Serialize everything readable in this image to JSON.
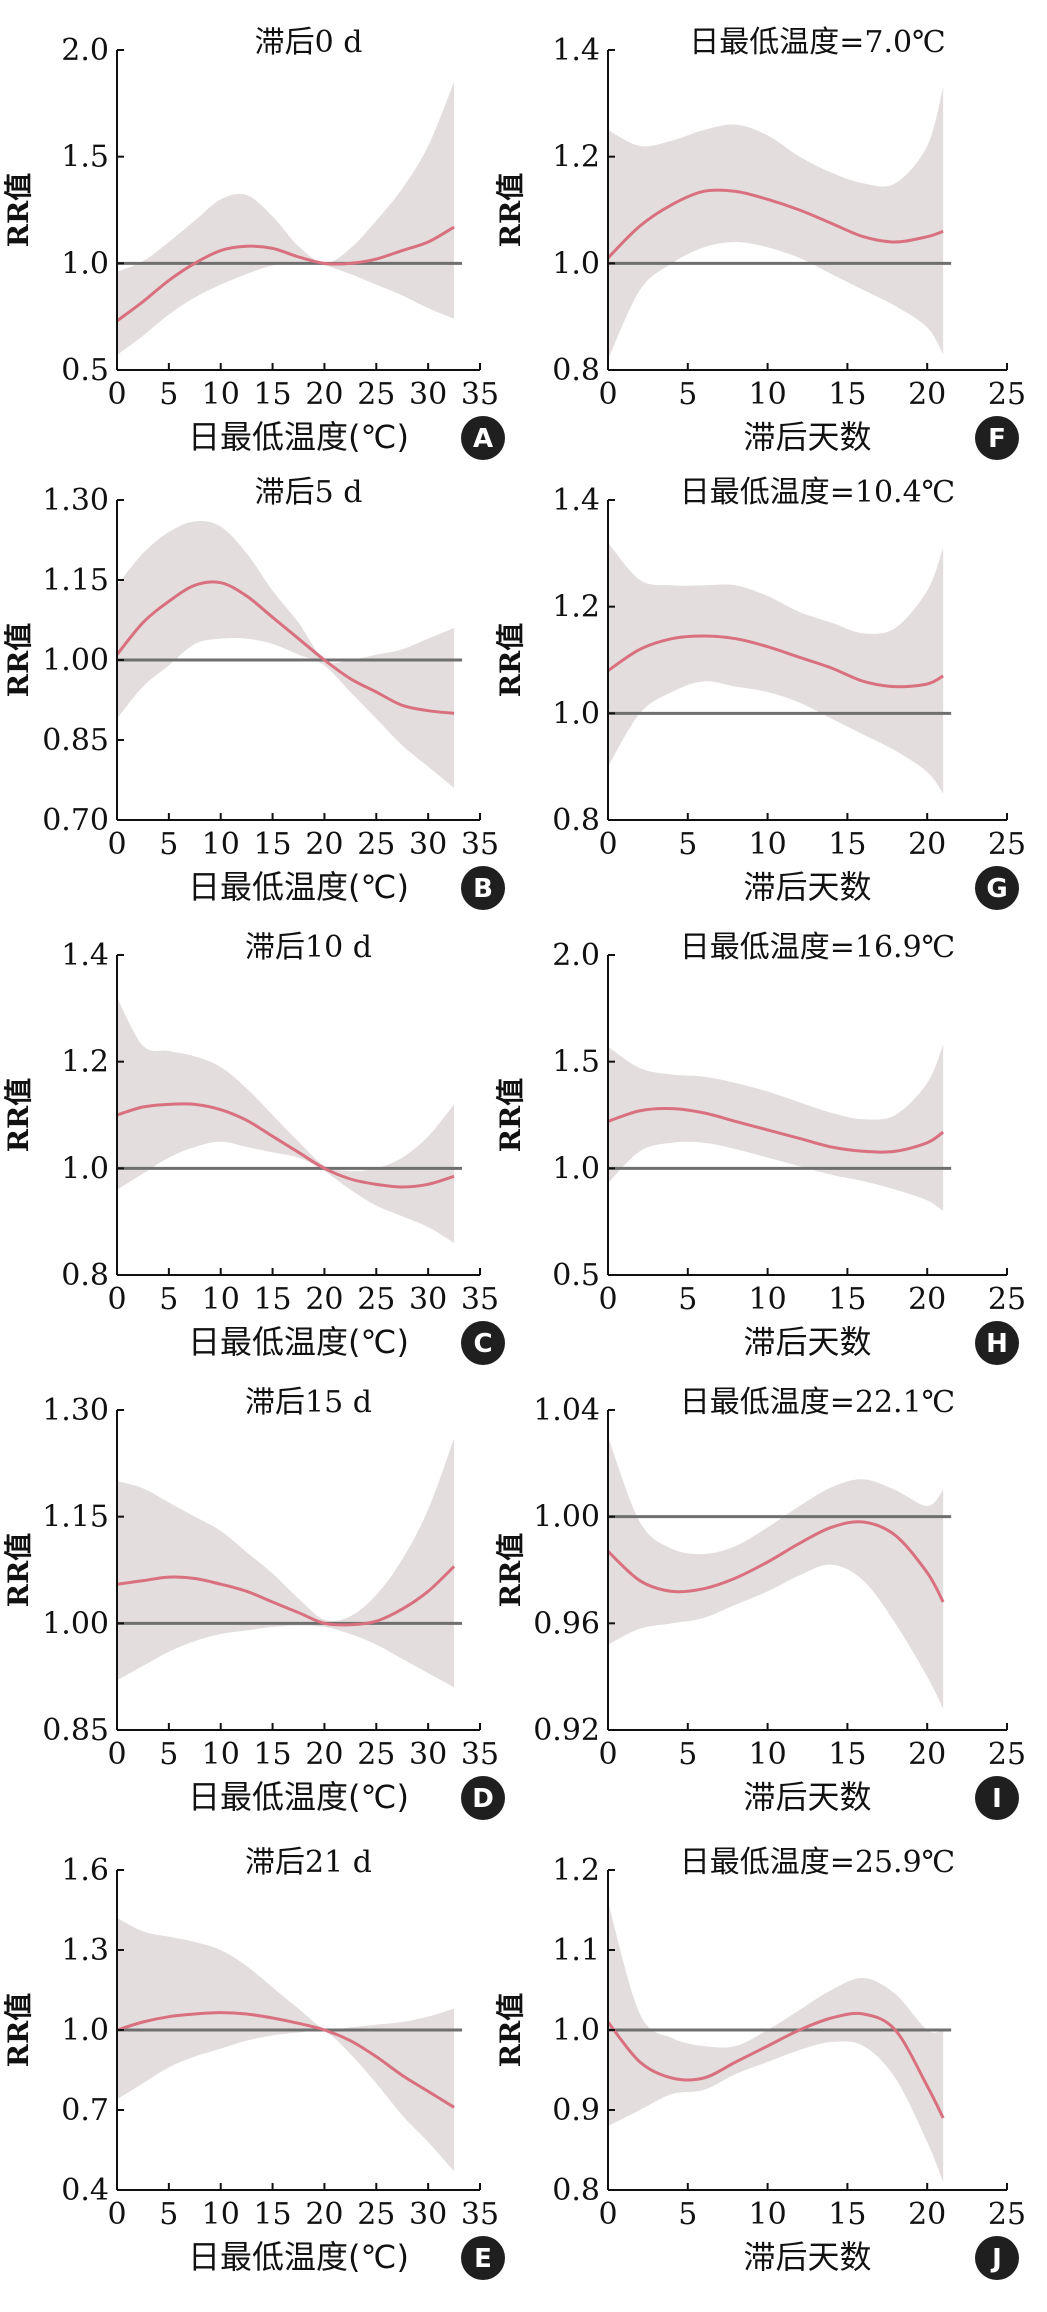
{
  "colors": {
    "band": "#e2dbdb",
    "curve": "#d9707f",
    "reference": "#6f6f6f",
    "axis": "#111111",
    "badge": "#1f1f1f"
  },
  "ylabel": "RR值",
  "chart_data": [
    {
      "panel": "A",
      "type": "line",
      "title": "滞后0 d",
      "xlabel": "日最低温度(℃)",
      "xlim": [
        0,
        35
      ],
      "xticks": [
        0,
        5,
        10,
        15,
        20,
        25,
        30,
        35
      ],
      "ylim": [
        0.5,
        2.0
      ],
      "yticks": [
        "0.5",
        "1.0",
        "1.5",
        "2.0"
      ],
      "reference": 1.0,
      "x": [
        0,
        2.5,
        5,
        7.5,
        10,
        12.5,
        15,
        17.5,
        20,
        22.5,
        25,
        27.5,
        30,
        32.5
      ],
      "rr": [
        0.73,
        0.82,
        0.92,
        1.0,
        1.06,
        1.08,
        1.07,
        1.03,
        1.0,
        1.0,
        1.02,
        1.06,
        1.1,
        1.17
      ],
      "lower": [
        0.57,
        0.66,
        0.76,
        0.84,
        0.9,
        0.95,
        0.99,
        1.0,
        0.99,
        0.95,
        0.9,
        0.85,
        0.79,
        0.74
      ],
      "upper": [
        0.96,
        1.01,
        1.1,
        1.2,
        1.3,
        1.32,
        1.22,
        1.08,
        1.0,
        1.07,
        1.2,
        1.35,
        1.55,
        1.85
      ]
    },
    {
      "panel": "B",
      "type": "line",
      "title": "滞后5 d",
      "xlabel": "日最低温度(℃)",
      "xlim": [
        0,
        35
      ],
      "xticks": [
        0,
        5,
        10,
        15,
        20,
        25,
        30,
        35
      ],
      "ylim": [
        0.7,
        1.3
      ],
      "yticks": [
        "0.70",
        "0.85",
        "1.00",
        "1.15",
        "1.30"
      ],
      "reference": 1.0,
      "x": [
        0,
        2.5,
        5,
        7.5,
        10,
        12.5,
        15,
        17.5,
        20,
        22.5,
        25,
        27.5,
        30,
        32.5
      ],
      "rr": [
        1.01,
        1.07,
        1.11,
        1.14,
        1.145,
        1.12,
        1.08,
        1.04,
        1.0,
        0.965,
        0.94,
        0.915,
        0.905,
        0.9
      ],
      "lower": [
        0.89,
        0.95,
        0.99,
        1.03,
        1.04,
        1.04,
        1.03,
        1.01,
        0.99,
        0.94,
        0.89,
        0.84,
        0.8,
        0.76
      ],
      "upper": [
        1.14,
        1.2,
        1.24,
        1.26,
        1.25,
        1.2,
        1.13,
        1.07,
        1.0,
        1.0,
        1.01,
        1.02,
        1.04,
        1.06
      ]
    },
    {
      "panel": "C",
      "type": "line",
      "title": "滞后10 d",
      "xlabel": "日最低温度(℃)",
      "xlim": [
        0,
        35
      ],
      "xticks": [
        0,
        5,
        10,
        15,
        20,
        25,
        30,
        35
      ],
      "ylim": [
        0.8,
        1.4
      ],
      "yticks": [
        "0.8",
        "1.0",
        "1.2",
        "1.4"
      ],
      "reference": 1.0,
      "x": [
        0,
        2.5,
        5,
        7.5,
        10,
        12.5,
        15,
        17.5,
        20,
        22.5,
        25,
        27.5,
        30,
        32.5
      ],
      "rr": [
        1.1,
        1.115,
        1.12,
        1.12,
        1.11,
        1.09,
        1.06,
        1.03,
        1.0,
        0.98,
        0.97,
        0.965,
        0.97,
        0.985
      ],
      "lower": [
        0.96,
        0.99,
        1.02,
        1.04,
        1.05,
        1.04,
        1.03,
        1.02,
        0.995,
        0.96,
        0.93,
        0.91,
        0.89,
        0.86
      ],
      "upper": [
        1.32,
        1.23,
        1.22,
        1.21,
        1.19,
        1.15,
        1.1,
        1.05,
        1.005,
        0.995,
        1.0,
        1.02,
        1.06,
        1.12
      ]
    },
    {
      "panel": "D",
      "type": "line",
      "title": "滞后15 d",
      "xlabel": "日最低温度(℃)",
      "xlim": [
        0,
        35
      ],
      "xticks": [
        0,
        5,
        10,
        15,
        20,
        25,
        30,
        35
      ],
      "ylim": [
        0.85,
        1.3
      ],
      "yticks": [
        "0.85",
        "1.00",
        "1.15",
        "1.30"
      ],
      "reference": 1.0,
      "x": [
        0,
        2.5,
        5,
        7.5,
        10,
        12.5,
        15,
        17.5,
        20,
        22.5,
        25,
        27.5,
        30,
        32.5
      ],
      "rr": [
        1.055,
        1.06,
        1.065,
        1.063,
        1.055,
        1.045,
        1.03,
        1.015,
        1.0,
        0.998,
        1.003,
        1.02,
        1.045,
        1.08
      ],
      "lower": [
        0.92,
        0.94,
        0.96,
        0.975,
        0.985,
        0.99,
        0.995,
        0.997,
        0.995,
        0.985,
        0.97,
        0.95,
        0.93,
        0.91
      ],
      "upper": [
        1.2,
        1.19,
        1.17,
        1.15,
        1.13,
        1.1,
        1.07,
        1.035,
        1.005,
        1.01,
        1.04,
        1.09,
        1.16,
        1.26
      ]
    },
    {
      "panel": "E",
      "type": "line",
      "title": "滞后21 d",
      "xlabel": "日最低温度(℃)",
      "xlim": [
        0,
        35
      ],
      "xticks": [
        0,
        5,
        10,
        15,
        20,
        25,
        30,
        35
      ],
      "ylim": [
        0.4,
        1.6
      ],
      "yticks": [
        "0.4",
        "0.7",
        "1.0",
        "1.3",
        "1.6"
      ],
      "reference": 1.0,
      "x": [
        0,
        2.5,
        5,
        7.5,
        10,
        12.5,
        15,
        17.5,
        20,
        22.5,
        25,
        27.5,
        30,
        32.5
      ],
      "rr": [
        1.0,
        1.03,
        1.05,
        1.06,
        1.065,
        1.06,
        1.045,
        1.025,
        1.0,
        0.96,
        0.9,
        0.83,
        0.77,
        0.71
      ],
      "lower": [
        0.74,
        0.8,
        0.86,
        0.9,
        0.93,
        0.96,
        0.98,
        0.99,
        0.995,
        0.91,
        0.8,
        0.68,
        0.58,
        0.47
      ],
      "upper": [
        1.42,
        1.37,
        1.35,
        1.33,
        1.3,
        1.24,
        1.16,
        1.08,
        1.005,
        1.01,
        1.02,
        1.03,
        1.05,
        1.08
      ]
    },
    {
      "panel": "F",
      "type": "line",
      "title": "日最低温度=7.0℃",
      "xlabel": "滞后天数",
      "xlim": [
        0,
        25
      ],
      "xticks": [
        0,
        5,
        10,
        15,
        20,
        25
      ],
      "ylim": [
        0.8,
        1.4
      ],
      "yticks": [
        "0.8",
        "1.0",
        "1.2",
        "1.4"
      ],
      "reference": 1.0,
      "x": [
        0,
        2,
        4,
        6,
        8,
        10,
        12,
        14,
        16,
        18,
        20,
        21
      ],
      "rr": [
        1.01,
        1.07,
        1.11,
        1.135,
        1.135,
        1.12,
        1.1,
        1.075,
        1.05,
        1.04,
        1.05,
        1.06
      ],
      "lower": [
        0.82,
        0.95,
        1.0,
        1.03,
        1.04,
        1.03,
        1.01,
        0.98,
        0.95,
        0.92,
        0.88,
        0.83
      ],
      "upper": [
        1.25,
        1.22,
        1.23,
        1.25,
        1.26,
        1.24,
        1.2,
        1.17,
        1.15,
        1.15,
        1.22,
        1.33
      ]
    },
    {
      "panel": "G",
      "type": "line",
      "title": "日最低温度=10.4℃",
      "xlabel": "滞后天数",
      "xlim": [
        0,
        25
      ],
      "xticks": [
        0,
        5,
        10,
        15,
        20,
        25
      ],
      "ylim": [
        0.8,
        1.4
      ],
      "yticks": [
        "0.8",
        "1.0",
        "1.2",
        "1.4"
      ],
      "reference": 1.0,
      "x": [
        0,
        2,
        4,
        6,
        8,
        10,
        12,
        14,
        16,
        18,
        20,
        21
      ],
      "rr": [
        1.08,
        1.12,
        1.14,
        1.145,
        1.14,
        1.125,
        1.105,
        1.085,
        1.06,
        1.05,
        1.055,
        1.07
      ],
      "lower": [
        0.9,
        1.0,
        1.04,
        1.06,
        1.05,
        1.04,
        1.02,
        0.99,
        0.96,
        0.93,
        0.89,
        0.85
      ],
      "upper": [
        1.32,
        1.25,
        1.24,
        1.24,
        1.24,
        1.22,
        1.19,
        1.17,
        1.15,
        1.16,
        1.23,
        1.31
      ]
    },
    {
      "panel": "H",
      "type": "line",
      "title": "日最低温度=16.9℃",
      "xlabel": "滞后天数",
      "xlim": [
        0,
        25
      ],
      "xticks": [
        0,
        5,
        10,
        15,
        20,
        25
      ],
      "ylim": [
        0.5,
        2.0
      ],
      "yticks": [
        "0.5",
        "1.0",
        "1.5",
        "2.0"
      ],
      "reference": 1.0,
      "x": [
        0,
        2,
        4,
        6,
        8,
        10,
        12,
        14,
        16,
        18,
        20,
        21
      ],
      "rr": [
        1.22,
        1.27,
        1.28,
        1.26,
        1.22,
        1.18,
        1.14,
        1.1,
        1.08,
        1.08,
        1.12,
        1.17
      ],
      "lower": [
        0.93,
        1.08,
        1.12,
        1.12,
        1.09,
        1.05,
        1.01,
        0.97,
        0.94,
        0.9,
        0.85,
        0.8
      ],
      "upper": [
        1.57,
        1.47,
        1.44,
        1.43,
        1.4,
        1.36,
        1.31,
        1.26,
        1.23,
        1.25,
        1.4,
        1.58
      ]
    },
    {
      "panel": "I",
      "type": "line",
      "title": "日最低温度=22.1℃",
      "xlabel": "滞后天数",
      "xlim": [
        0,
        25
      ],
      "xticks": [
        0,
        5,
        10,
        15,
        20,
        25
      ],
      "ylim": [
        0.92,
        1.04
      ],
      "yticks": [
        "0.92",
        "0.96",
        "1.00",
        "1.04"
      ],
      "reference": 1.0,
      "x": [
        0,
        2,
        4,
        6,
        8,
        10,
        12,
        14,
        16,
        18,
        20,
        21
      ],
      "rr": [
        0.987,
        0.976,
        0.972,
        0.973,
        0.977,
        0.983,
        0.99,
        0.996,
        0.998,
        0.993,
        0.979,
        0.968
      ],
      "lower": [
        0.952,
        0.958,
        0.96,
        0.962,
        0.967,
        0.972,
        0.978,
        0.982,
        0.976,
        0.96,
        0.94,
        0.928
      ],
      "upper": [
        1.03,
        0.998,
        0.988,
        0.986,
        0.989,
        0.996,
        1.004,
        1.011,
        1.014,
        1.01,
        1.004,
        1.01
      ]
    },
    {
      "panel": "J",
      "type": "line",
      "title": "日最低温度=25.9℃",
      "xlabel": "滞后天数",
      "xlim": [
        0,
        25
      ],
      "xticks": [
        0,
        5,
        10,
        15,
        20,
        25
      ],
      "ylim": [
        0.8,
        1.2
      ],
      "yticks": [
        "0.8",
        "0.9",
        "1.0",
        "1.1",
        "1.2"
      ],
      "reference": 1.0,
      "x": [
        0,
        2,
        4,
        6,
        8,
        10,
        12,
        14,
        16,
        18,
        20,
        21
      ],
      "rr": [
        1.01,
        0.96,
        0.94,
        0.94,
        0.96,
        0.98,
        1.0,
        1.015,
        1.02,
        1.0,
        0.93,
        0.89
      ],
      "lower": [
        0.88,
        0.9,
        0.92,
        0.925,
        0.945,
        0.96,
        0.975,
        0.985,
        0.98,
        0.94,
        0.86,
        0.81
      ],
      "upper": [
        1.16,
        1.02,
        0.99,
        0.98,
        0.98,
        1.0,
        1.025,
        1.05,
        1.065,
        1.045,
        1.0,
        1.0
      ]
    }
  ]
}
